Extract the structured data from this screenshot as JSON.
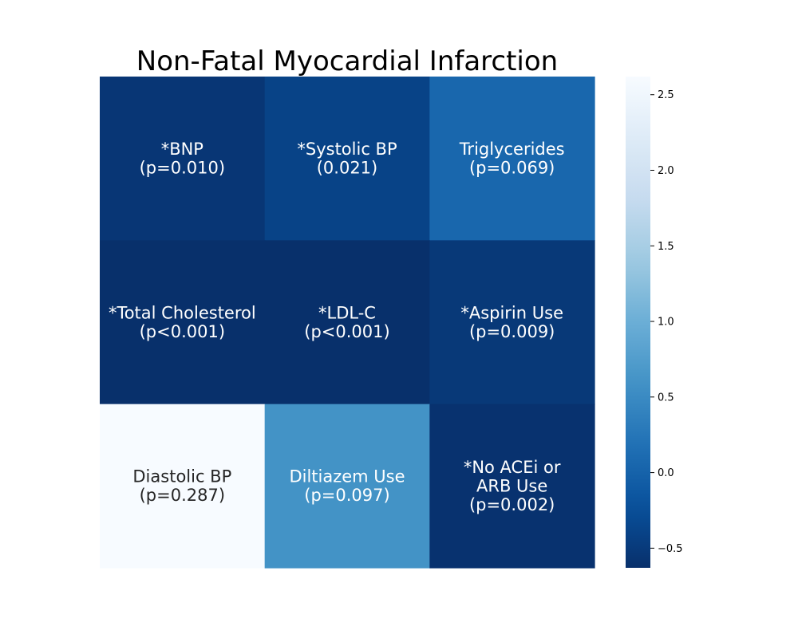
{
  "chart_data": {
    "type": "heatmap",
    "title": "Non-Fatal Myocardial Infarction",
    "xlabel": "",
    "ylabel": "",
    "rows": 3,
    "cols": 3,
    "values": [
      [
        -0.55,
        -0.4,
        0.05
      ],
      [
        -0.63,
        -0.63,
        -0.52
      ],
      [
        2.62,
        0.6,
        -0.6
      ]
    ],
    "annotations": [
      [
        [
          "*BNP",
          "(p=0.010)"
        ],
        [
          "*Systolic BP",
          "(0.021)"
        ],
        [
          "Triglycerides",
          "(p=0.069)"
        ]
      ],
      [
        [
          "*Total Cholesterol",
          "(p<0.001)"
        ],
        [
          "*LDL-C",
          "(p<0.001)"
        ],
        [
          "*Aspirin Use",
          "(p=0.009)"
        ]
      ],
      [
        [
          "Diastolic BP",
          "(p=0.287)"
        ],
        [
          "Diltiazem Use",
          "(p=0.097)"
        ],
        [
          "*No ACEi or",
          "ARB Use",
          "(p=0.002)"
        ]
      ]
    ],
    "colorbar": {
      "colormap": "Blues_r",
      "range": [
        -0.63,
        2.62
      ],
      "ticks": [
        -0.5,
        0.0,
        0.5,
        1.0,
        1.5,
        2.0,
        2.5
      ],
      "tick_labels": [
        "−0.5",
        "0.0",
        "0.5",
        "1.0",
        "1.5",
        "2.0",
        "2.5"
      ]
    },
    "grid": false
  }
}
